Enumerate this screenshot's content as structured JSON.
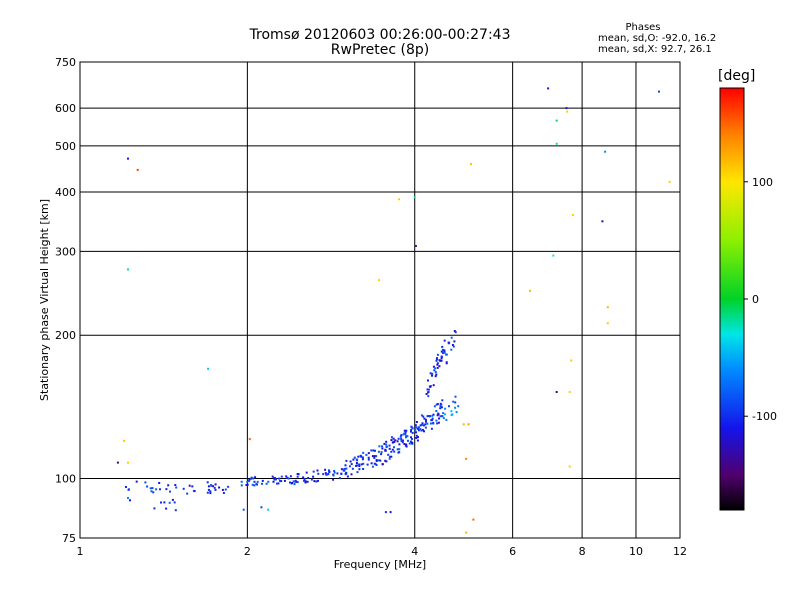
{
  "chart_data": {
    "type": "scatter",
    "title": "Tromsø 20120603 00:26:00-00:27:43",
    "subtitle": "RwPretec (8p)",
    "xlabel": "Frequency [MHz]",
    "ylabel": "Stationary phase Virtual Height [km]",
    "x_scale": "log",
    "y_scale": "log",
    "xlim": [
      1,
      12
    ],
    "ylim": [
      75,
      750
    ],
    "x_ticks": [
      1,
      2,
      4,
      6,
      8,
      10,
      12
    ],
    "x_tick_labels": [
      "1",
      "2",
      "4",
      "6",
      "8",
      "10",
      "12"
    ],
    "y_ticks": [
      75,
      100,
      200,
      300,
      400,
      500,
      600,
      750
    ],
    "y_tick_labels": [
      "75",
      "100",
      "200",
      "300",
      "400",
      "500",
      "600",
      "750"
    ],
    "grid": true,
    "phase_stats": {
      "header": "Phases",
      "o_line": "mean, sd,O: -92.0, 16.2",
      "x_line": "mean, sd,X:  92.7, 26.1"
    },
    "colorbar": {
      "unit": "[deg]",
      "range": [
        -180,
        180
      ],
      "ticks": [
        100,
        0,
        -100
      ],
      "tick_labels": [
        "100",
        "0",
        "-100"
      ],
      "colormap": "rainbow (black-purple-blue-cyan-green-yellow-orange-red)"
    },
    "points": [
      {
        "x": 1.22,
        "y": 470,
        "phase": -110
      },
      {
        "x": 1.27,
        "y": 445,
        "phase": 160
      },
      {
        "x": 1.22,
        "y": 275,
        "phase": -20
      },
      {
        "x": 1.7,
        "y": 170,
        "phase": -40
      },
      {
        "x": 1.2,
        "y": 120,
        "phase": 110
      },
      {
        "x": 1.22,
        "y": 108,
        "phase": 110
      },
      {
        "x": 1.17,
        "y": 108,
        "phase": -140
      },
      {
        "x": 2.02,
        "y": 121,
        "phase": 150
      },
      {
        "x": 1.21,
        "y": 96,
        "phase": -100
      },
      {
        "x": 1.22,
        "y": 91,
        "phase": -60
      },
      {
        "x": 1.23,
        "y": 90,
        "phase": -110
      },
      {
        "x": 1.97,
        "y": 86,
        "phase": -80
      },
      {
        "x": 2.18,
        "y": 86,
        "phase": -40
      },
      {
        "x": 2.12,
        "y": 87,
        "phase": -90
      },
      {
        "x": 3.45,
        "y": 261,
        "phase": 110
      },
      {
        "x": 3.75,
        "y": 386,
        "phase": 110
      },
      {
        "x": 4.0,
        "y": 390,
        "phase": -20
      },
      {
        "x": 4.02,
        "y": 308,
        "phase": -130
      },
      {
        "x": 3.55,
        "y": 85,
        "phase": -100
      },
      {
        "x": 3.62,
        "y": 85,
        "phase": -110
      },
      {
        "x": 5.05,
        "y": 458,
        "phase": 110
      },
      {
        "x": 6.45,
        "y": 248,
        "phase": 120
      },
      {
        "x": 6.95,
        "y": 660,
        "phase": -120
      },
      {
        "x": 7.2,
        "y": 565,
        "phase": -10
      },
      {
        "x": 7.2,
        "y": 505,
        "phase": -20
      },
      {
        "x": 7.1,
        "y": 294,
        "phase": -30
      },
      {
        "x": 7.5,
        "y": 600,
        "phase": -110
      },
      {
        "x": 7.52,
        "y": 590,
        "phase": 110
      },
      {
        "x": 7.7,
        "y": 358,
        "phase": 110
      },
      {
        "x": 7.65,
        "y": 177,
        "phase": 110
      },
      {
        "x": 7.2,
        "y": 152,
        "phase": -140
      },
      {
        "x": 7.6,
        "y": 152,
        "phase": 110
      },
      {
        "x": 7.6,
        "y": 106,
        "phase": 110
      },
      {
        "x": 8.8,
        "y": 486,
        "phase": -60
      },
      {
        "x": 8.7,
        "y": 347,
        "phase": -130
      },
      {
        "x": 8.9,
        "y": 229,
        "phase": 120
      },
      {
        "x": 8.9,
        "y": 212,
        "phase": 110
      },
      {
        "x": 11.0,
        "y": 650,
        "phase": -90
      },
      {
        "x": 11.5,
        "y": 420,
        "phase": 110
      },
      {
        "x": 4.9,
        "y": 130,
        "phase": 120
      },
      {
        "x": 5.0,
        "y": 130,
        "phase": 130
      },
      {
        "x": 4.95,
        "y": 110,
        "phase": 140
      },
      {
        "x": 5.1,
        "y": 82,
        "phase": 150
      },
      {
        "x": 4.95,
        "y": 77,
        "phase": 120
      }
    ],
    "dense_trace": {
      "description": "O-mode echoes (phase near -100 deg), dense trace",
      "groups": [
        {
          "x_start": 1.22,
          "x_end": 1.85,
          "y_start": 96,
          "y_end": 95,
          "spread": 3,
          "count": 40,
          "phase": -100
        },
        {
          "x_start": 1.36,
          "x_end": 1.55,
          "y_start": 88,
          "y_end": 88,
          "spread": 3,
          "count": 8,
          "phase": -100
        },
        {
          "x_start": 1.9,
          "x_end": 2.4,
          "y_start": 98,
          "y_end": 100,
          "spread": 2,
          "count": 40,
          "phase": -100
        },
        {
          "x_start": 2.4,
          "x_end": 3.0,
          "y_start": 100,
          "y_end": 103,
          "spread": 3,
          "count": 50,
          "phase": -100
        },
        {
          "x_start": 3.0,
          "x_end": 3.5,
          "y_start": 104,
          "y_end": 113,
          "spread": 5,
          "count": 60,
          "phase": -100
        },
        {
          "x_start": 3.5,
          "x_end": 4.0,
          "y_start": 113,
          "y_end": 125,
          "spread": 6,
          "count": 70,
          "phase": -100
        },
        {
          "x_start": 4.0,
          "x_end": 4.5,
          "y_start": 125,
          "y_end": 140,
          "spread": 7,
          "count": 60,
          "phase": -100
        },
        {
          "x_start": 4.2,
          "x_end": 4.55,
          "y_start": 150,
          "y_end": 190,
          "spread": 9,
          "count": 45,
          "phase": -100
        },
        {
          "x_start": 4.55,
          "x_end": 4.75,
          "y_start": 180,
          "y_end": 200,
          "spread": 8,
          "count": 14,
          "phase": -100
        },
        {
          "x_start": 4.45,
          "x_end": 4.8,
          "y_start": 135,
          "y_end": 145,
          "spread": 6,
          "count": 16,
          "phase": -70
        }
      ]
    }
  }
}
